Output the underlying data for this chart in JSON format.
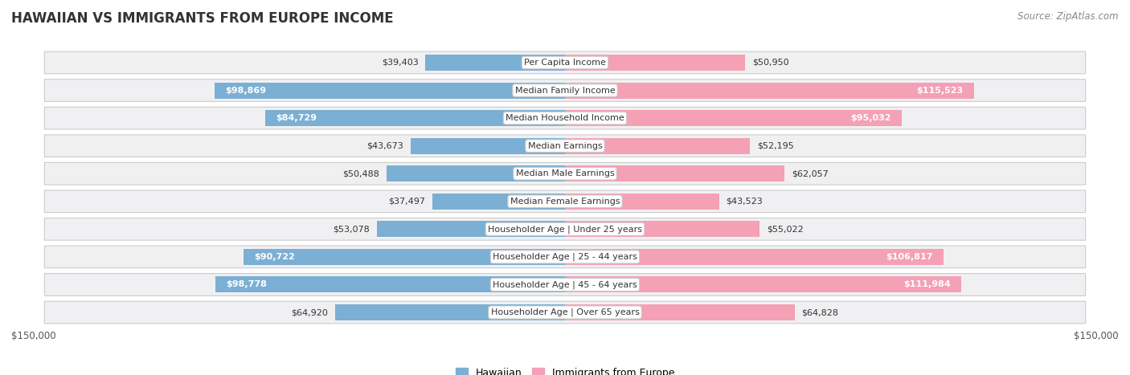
{
  "title": "HAWAIIAN VS IMMIGRANTS FROM EUROPE INCOME",
  "source": "Source: ZipAtlas.com",
  "categories": [
    "Per Capita Income",
    "Median Family Income",
    "Median Household Income",
    "Median Earnings",
    "Median Male Earnings",
    "Median Female Earnings",
    "Householder Age | Under 25 years",
    "Householder Age | 25 - 44 years",
    "Householder Age | 45 - 64 years",
    "Householder Age | Over 65 years"
  ],
  "hawaiian": [
    39403,
    98869,
    84729,
    43673,
    50488,
    37497,
    53078,
    90722,
    98778,
    64920
  ],
  "europe": [
    50950,
    115523,
    95032,
    52195,
    62057,
    43523,
    55022,
    106817,
    111984,
    64828
  ],
  "max_val": 150000,
  "hawaiian_color": "#7bafd4",
  "europe_color": "#f4a0b5",
  "row_bg": "#f0f0f2",
  "title_fontsize": 12,
  "source_fontsize": 8.5,
  "bar_label_fontsize": 8,
  "cat_label_fontsize": 8,
  "legend_fontsize": 9,
  "axis_label_fontsize": 8.5,
  "haw_inside_threshold": 65000,
  "eur_inside_threshold": 80000
}
